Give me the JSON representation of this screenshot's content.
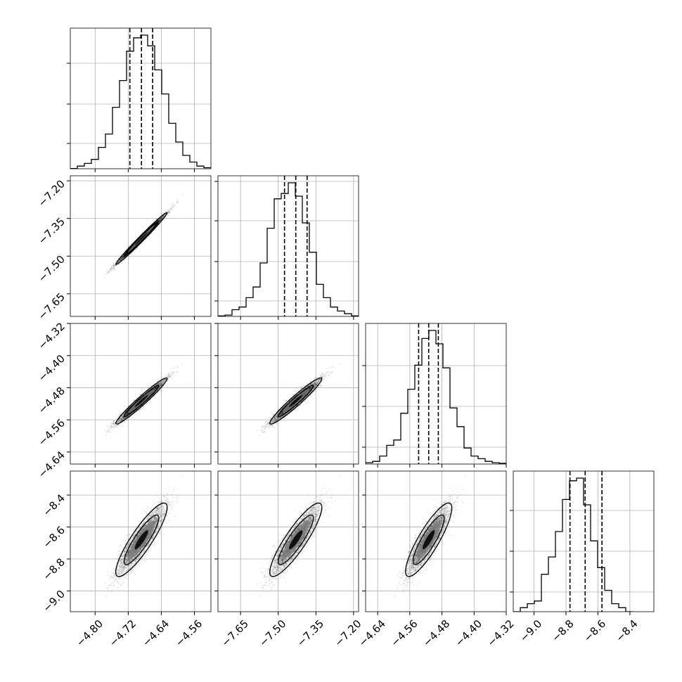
{
  "chart_data": {
    "type": "corner",
    "parameters": [
      {
        "range": [
          -4.86,
          -4.52
        ],
        "ticks": [
          -4.8,
          -4.72,
          -4.64,
          -4.56
        ],
        "tick_labels": [
          "−4.80",
          "−4.72",
          "−4.64",
          "−4.56"
        ],
        "quantiles": [
          -4.716,
          -4.688,
          -4.661
        ]
      },
      {
        "range": [
          -7.74,
          -7.18
        ],
        "ticks": [
          -7.65,
          -7.5,
          -7.35,
          -7.2
        ],
        "tick_labels": [
          "−7.65",
          "−7.50",
          "−7.35",
          "−7.20"
        ],
        "quantiles": [
          -7.475,
          -7.43,
          -7.385
        ]
      },
      {
        "range": [
          -4.67,
          -4.32
        ],
        "ticks": [
          -4.64,
          -4.56,
          -4.48,
          -4.4,
          -4.32
        ],
        "tick_labels": [
          "−4.64",
          "−4.56",
          "−4.48",
          "−4.40",
          "−4.32"
        ],
        "quantiles": [
          -4.538,
          -4.513,
          -4.489
        ]
      },
      {
        "range": [
          -9.13,
          -8.25
        ],
        "ticks": [
          -9.0,
          -8.8,
          -8.6,
          -8.4
        ],
        "tick_labels": [
          "−9.0",
          "−8.8",
          "−8.6",
          "−8.4"
        ],
        "quantiles": [
          -8.775,
          -8.68,
          -8.575
        ]
      }
    ],
    "diagonal_y_ticks": [
      [
        0.18,
        0.46,
        0.75
      ],
      [
        0.11,
        0.39,
        0.68,
        0.96
      ],
      [
        0.12,
        0.41,
        0.7
      ],
      [
        0.14,
        0.43,
        0.72
      ]
    ],
    "histograms": [
      {
        "bin_start": -4.86,
        "bin_width": 0.017,
        "counts": [
          0.002,
          0.02,
          0.04,
          0.07,
          0.16,
          0.26,
          0.46,
          0.66,
          0.88,
          0.98,
          1.0,
          0.92,
          0.74,
          0.56,
          0.34,
          0.2,
          0.1,
          0.05,
          0.02,
          0.008
        ]
      },
      {
        "bin_start": -7.74,
        "bin_width": 0.028,
        "counts": [
          0.004,
          0.01,
          0.05,
          0.07,
          0.14,
          0.22,
          0.4,
          0.66,
          0.88,
          0.92,
          1.0,
          0.9,
          0.7,
          0.48,
          0.24,
          0.14,
          0.07,
          0.04,
          0.02,
          0.004
        ]
      },
      {
        "bin_start": -4.67,
        "bin_width": 0.0175,
        "counts": [
          0.01,
          0.02,
          0.06,
          0.14,
          0.18,
          0.38,
          0.56,
          0.74,
          0.94,
          1.0,
          0.9,
          0.72,
          0.42,
          0.28,
          0.12,
          0.06,
          0.04,
          0.02,
          0.01,
          0.006
        ]
      },
      {
        "bin_start": -9.13,
        "bin_width": 0.044,
        "counts": [
          0.0,
          0.03,
          0.06,
          0.08,
          0.28,
          0.41,
          0.6,
          0.84,
          0.98,
          1.0,
          0.8,
          0.53,
          0.33,
          0.16,
          0.06,
          0.03,
          0.0
        ]
      }
    ]
  }
}
